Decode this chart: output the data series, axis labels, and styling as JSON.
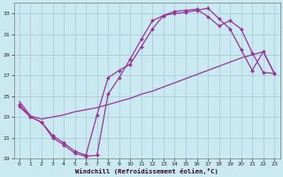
{
  "xlabel": "Windchill (Refroidissement éolien,°C)",
  "background_color": "#cbe9f0",
  "grid_color": "#a0c8d8",
  "line_color": "#993399",
  "xlim": [
    -0.5,
    23.5
  ],
  "ylim": [
    19,
    34
  ],
  "xticks": [
    0,
    1,
    2,
    3,
    4,
    5,
    6,
    7,
    8,
    9,
    10,
    11,
    12,
    13,
    14,
    15,
    16,
    17,
    18,
    19,
    20,
    21,
    22,
    23
  ],
  "yticks": [
    19,
    21,
    23,
    25,
    27,
    29,
    31,
    33
  ],
  "line1_x": [
    0,
    1,
    2,
    3,
    4,
    5,
    6,
    7,
    8,
    9,
    10,
    11,
    12,
    13,
    14,
    15,
    16,
    17,
    18,
    19,
    20,
    21,
    22,
    23
  ],
  "line1_y": [
    24.0,
    23.0,
    22.5,
    21.0,
    20.3,
    19.5,
    19.2,
    19.3,
    25.2,
    26.8,
    28.6,
    30.5,
    32.3,
    32.8,
    33.0,
    33.1,
    33.3,
    33.5,
    32.5,
    31.5,
    29.5,
    27.5,
    29.3,
    27.2
  ],
  "line2_x": [
    0,
    1,
    2,
    3,
    4,
    5,
    6,
    7,
    8,
    9,
    10,
    11,
    12,
    13,
    14,
    15,
    16,
    17,
    18,
    19,
    20,
    21,
    22,
    23
  ],
  "line2_y": [
    24.2,
    23.0,
    22.5,
    21.2,
    20.5,
    19.7,
    19.3,
    23.2,
    26.8,
    27.5,
    28.1,
    29.8,
    31.5,
    32.8,
    33.2,
    33.3,
    33.4,
    32.7,
    31.8,
    32.3,
    31.5,
    29.2,
    27.3,
    27.2
  ],
  "line3_x": [
    0,
    1,
    2,
    3,
    4,
    5,
    6,
    7,
    8,
    9,
    10,
    11,
    12,
    13,
    14,
    15,
    16,
    17,
    18,
    19,
    20,
    21,
    22,
    23
  ],
  "line3_y": [
    24.5,
    23.1,
    22.8,
    23.0,
    23.2,
    23.5,
    23.7,
    23.9,
    24.2,
    24.5,
    24.8,
    25.2,
    25.5,
    25.9,
    26.3,
    26.7,
    27.1,
    27.5,
    27.9,
    28.3,
    28.7,
    29.0,
    29.3,
    27.2
  ]
}
